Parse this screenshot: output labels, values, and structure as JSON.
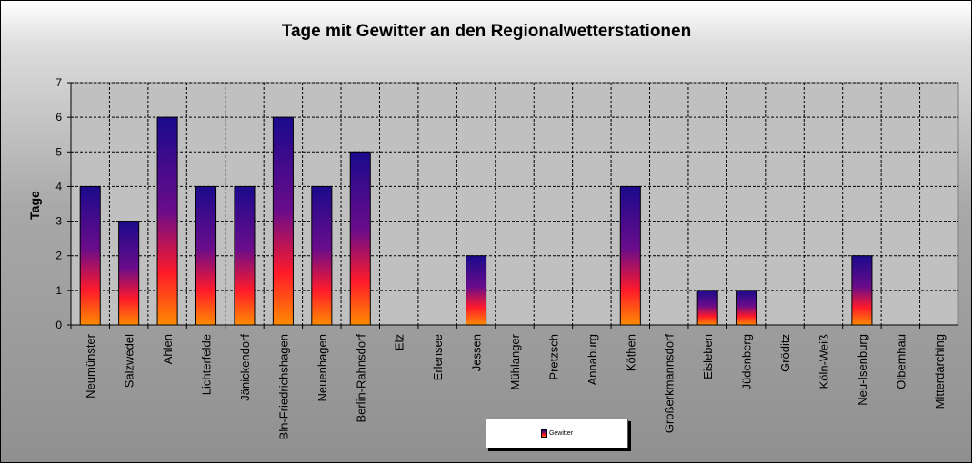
{
  "chart_data": {
    "type": "bar",
    "title": "Tage mit Gewitter  an den Regionalwetterstationen",
    "ylabel": "Tage",
    "xlabel": "",
    "ylim": [
      0,
      7
    ],
    "yticks": [
      0,
      1,
      2,
      3,
      4,
      5,
      6,
      7
    ],
    "grid": true,
    "legend_position": "bottom-center",
    "categories": [
      "Neumünster",
      "Salzwedel",
      "Ahlen",
      "Lichterfelde",
      "Jänickendorf",
      "Bln-Friedrichshagen",
      "Neuenhagen",
      "Berlin-Rahnsdorf",
      "Elz",
      "Erlensee",
      "Jessen",
      "Mühlanger",
      "Pretzsch",
      "Annaburg",
      "Köthen",
      "Großerkmannsdorf",
      "Eisleben",
      "Jüdenberg",
      "Gröditz",
      "Köln-Weiß",
      "Neu-Isenburg",
      "Olbernhau",
      "Mitterdarching"
    ],
    "series": [
      {
        "name": "Gewitter",
        "values": [
          4,
          3,
          6,
          4,
          4,
          6,
          4,
          5,
          0,
          0,
          2,
          0,
          0,
          0,
          4,
          0,
          1,
          1,
          0,
          0,
          2,
          0,
          0
        ]
      }
    ],
    "colors": {
      "bar_top": "#1a0a8c",
      "bar_mid": "#a0106e",
      "bar_low": "#ff1a1a",
      "bar_bottom": "#ff8c00",
      "plot_bg": "#c0c0c0"
    }
  }
}
